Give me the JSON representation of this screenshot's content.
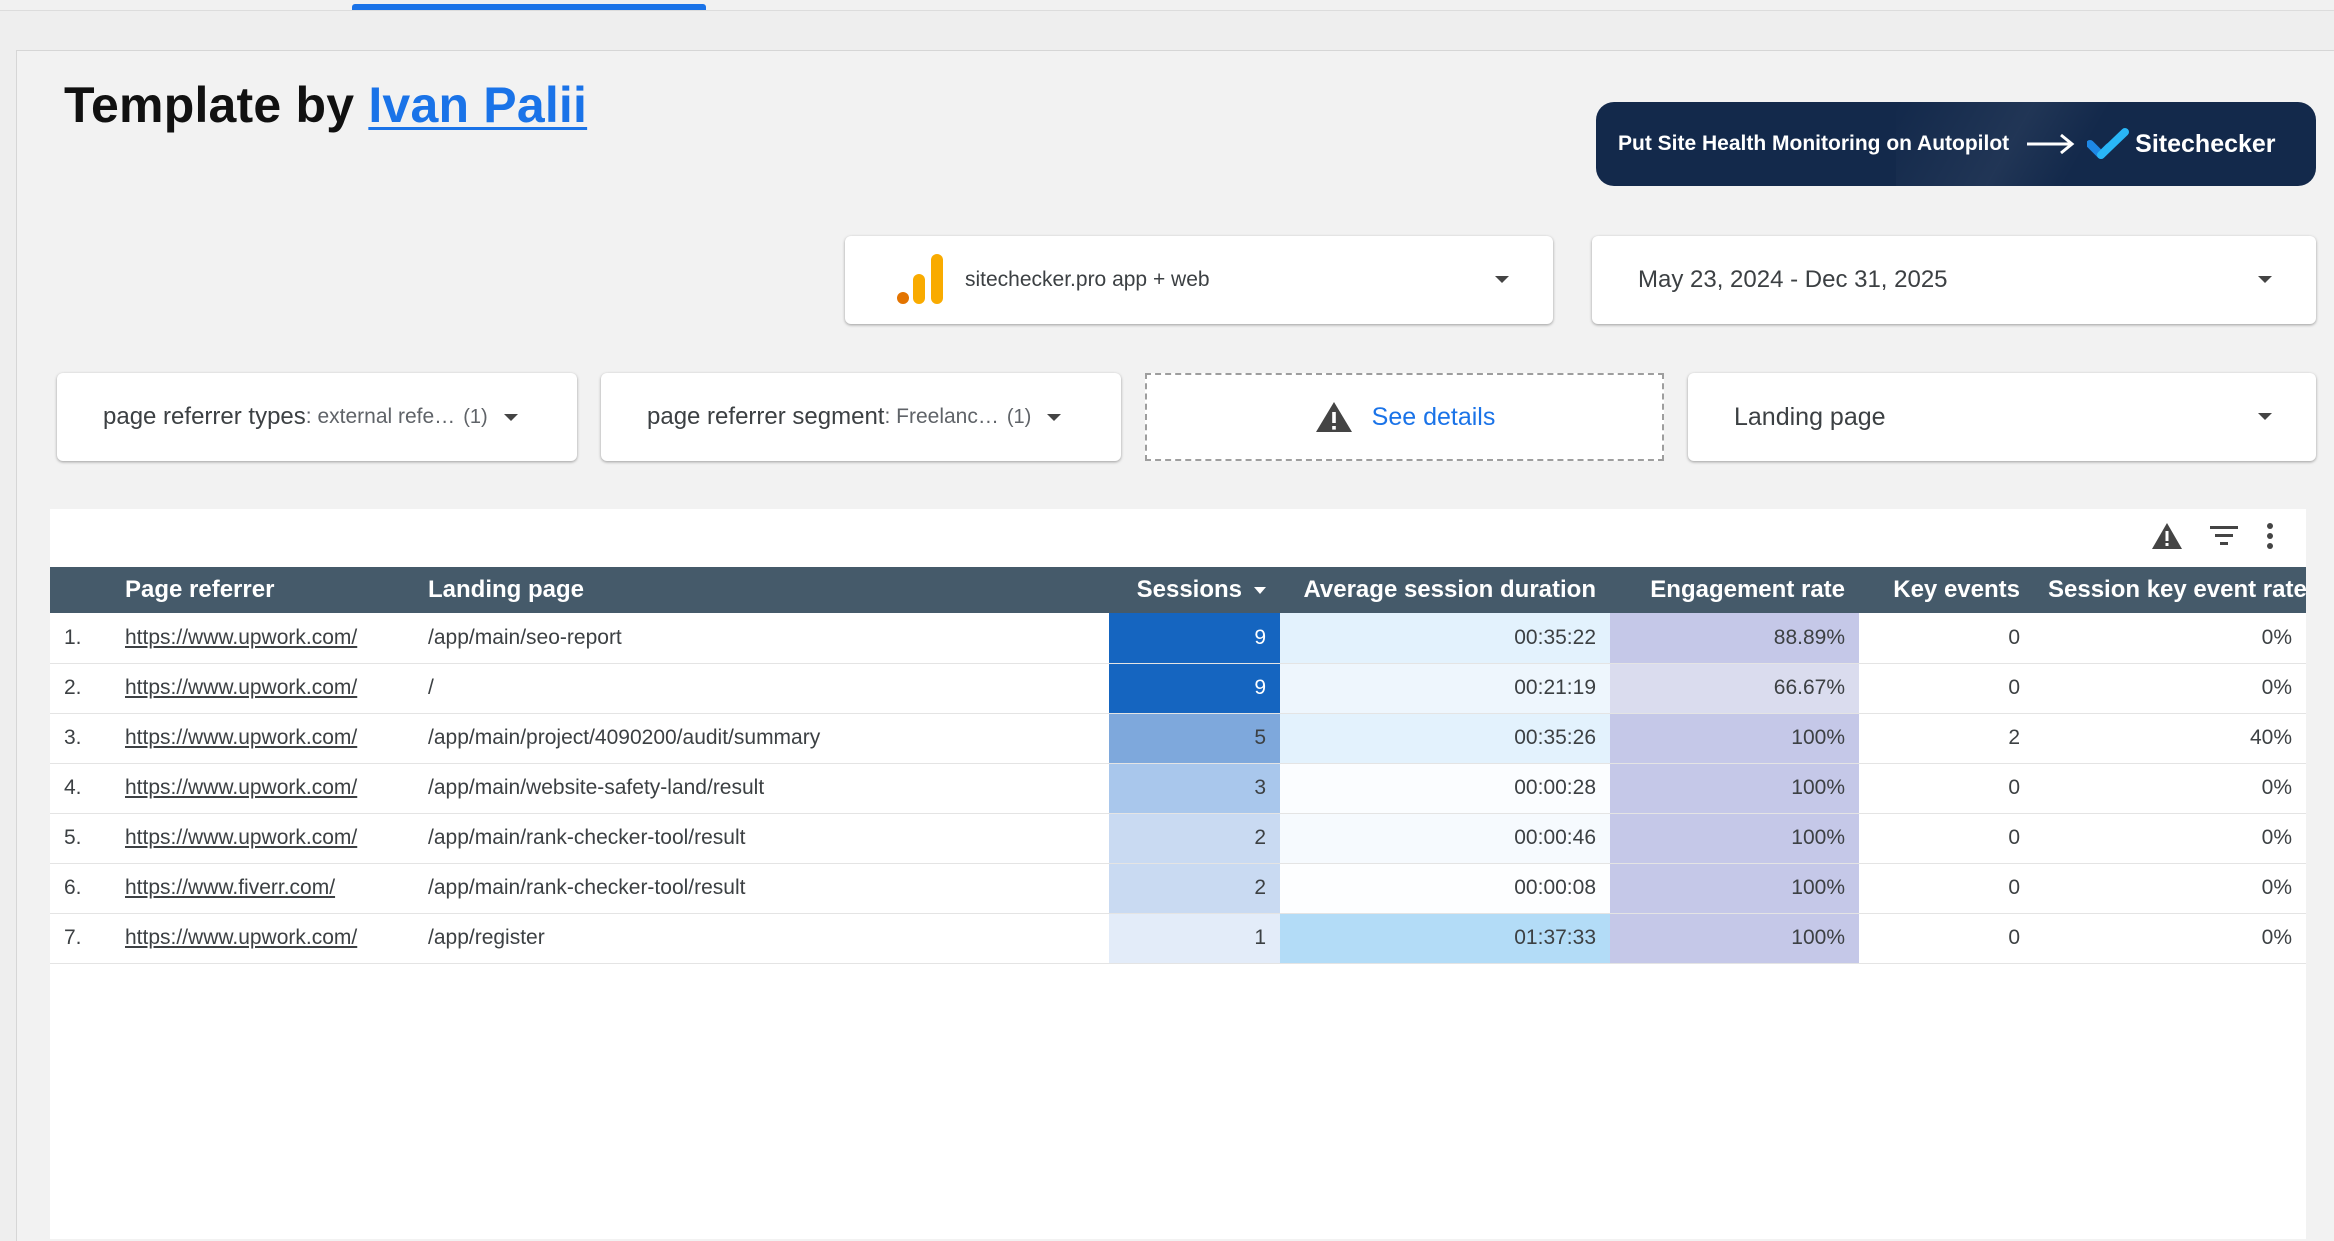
{
  "header": {
    "title_prefix": "Template by",
    "author_link": "Ivan Palii"
  },
  "banner": {
    "text": "Put Site Health Monitoring on Autopilot",
    "brand": "Sitechecker",
    "arrow_icon": "long-arrow-right-icon",
    "brand_icon": "checkmark-logo-icon"
  },
  "controls": {
    "data_source": {
      "label": "sitechecker.pro app + web",
      "icon": "google-analytics-icon"
    },
    "date_range": {
      "label": "May 23, 2024 - Dec 31, 2025"
    }
  },
  "filters": [
    {
      "label": "page referrer types",
      "value": ": external refe…",
      "count": "(1)"
    },
    {
      "label": "page referrer segment",
      "value": ": Freelanc…",
      "count": "(1)"
    }
  ],
  "details": {
    "label": "See details",
    "icon": "warning-icon"
  },
  "landing_filter": {
    "label": "Landing page"
  },
  "table": {
    "toolbar_icons": [
      "warning-icon",
      "filter-icon",
      "more-vert-icon"
    ],
    "columns": {
      "page_referrer": "Page referrer",
      "landing_page": "Landing page",
      "sessions": "Sessions",
      "avg_duration": "Average session duration",
      "engagement_rate": "Engagement rate",
      "key_events": "Key events",
      "session_key_event_rate": "Session key event rate"
    },
    "sort": {
      "column": "Sessions",
      "direction": "descending"
    },
    "heatmap_colors": {
      "sessions": [
        "#1565c0",
        "#1565c0",
        "#7ea8dc",
        "#a9c7ec",
        "#c9daf2",
        "#c9daf2",
        "#e3ecf9"
      ],
      "avg_duration": [
        "#e3f2fd",
        "#eef6fd",
        "#e3f2fd",
        "#fbfdff",
        "#f6fafe",
        "#fdfeff",
        "#b3dcf7"
      ],
      "engagement_rate": [
        "#c5c8e8",
        "#dadcee",
        "#c5c8e8",
        "#c5c8e8",
        "#c5c8e8",
        "#c5c8e8",
        "#c5c8e8"
      ]
    },
    "rows": [
      {
        "idx": "1.",
        "referrer": "https://www.upwork.com/",
        "landing": "/app/main/seo-report",
        "sessions": "9",
        "duration": "00:35:22",
        "engagement": "88.89%",
        "key_events": "0",
        "key_rate": "0%"
      },
      {
        "idx": "2.",
        "referrer": "https://www.upwork.com/",
        "landing": "/",
        "sessions": "9",
        "duration": "00:21:19",
        "engagement": "66.67%",
        "key_events": "0",
        "key_rate": "0%"
      },
      {
        "idx": "3.",
        "referrer": "https://www.upwork.com/",
        "landing": "/app/main/project/4090200/audit/summary",
        "sessions": "5",
        "duration": "00:35:26",
        "engagement": "100%",
        "key_events": "2",
        "key_rate": "40%"
      },
      {
        "idx": "4.",
        "referrer": "https://www.upwork.com/",
        "landing": "/app/main/website-safety-land/result",
        "sessions": "3",
        "duration": "00:00:28",
        "engagement": "100%",
        "key_events": "0",
        "key_rate": "0%"
      },
      {
        "idx": "5.",
        "referrer": "https://www.upwork.com/",
        "landing": "/app/main/rank-checker-tool/result",
        "sessions": "2",
        "duration": "00:00:46",
        "engagement": "100%",
        "key_events": "0",
        "key_rate": "0%"
      },
      {
        "idx": "6.",
        "referrer": "https://www.fiverr.com/",
        "landing": "/app/main/rank-checker-tool/result",
        "sessions": "2",
        "duration": "00:00:08",
        "engagement": "100%",
        "key_events": "0",
        "key_rate": "0%"
      },
      {
        "idx": "7.",
        "referrer": "https://www.upwork.com/",
        "landing": "/app/register",
        "sessions": "1",
        "duration": "01:37:33",
        "engagement": "100%",
        "key_events": "0",
        "key_rate": "0%"
      }
    ]
  }
}
